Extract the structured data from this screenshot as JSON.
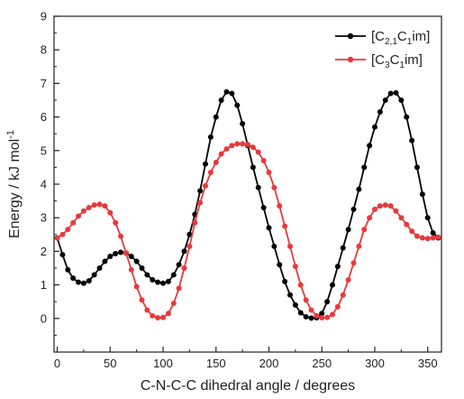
{
  "chart_data": {
    "type": "line",
    "xlabel": "C-N-C-C dihedral angle / degrees",
    "ylabel": "Energy / kJ mol",
    "ylabel_sup": "-1",
    "xlim": [
      -3,
      363
    ],
    "ylim": [
      -1,
      9
    ],
    "xticks": [
      0,
      50,
      100,
      150,
      200,
      250,
      300,
      350
    ],
    "yticks": [
      0,
      1,
      2,
      3,
      4,
      5,
      6,
      7,
      8,
      9
    ],
    "grid": false,
    "legend_position": "top-right",
    "series": [
      {
        "name_parts": [
          {
            "t": "[C",
            "sub": false
          },
          {
            "t": "2,1",
            "sub": true
          },
          {
            "t": "C",
            "sub": false
          },
          {
            "t": "1",
            "sub": true
          },
          {
            "t": "im]",
            "sub": false
          }
        ],
        "color": "#000000",
        "x": [
          0,
          5,
          10,
          15,
          20,
          25,
          30,
          35,
          40,
          45,
          50,
          55,
          60,
          65,
          70,
          75,
          80,
          85,
          90,
          95,
          100,
          105,
          110,
          115,
          120,
          125,
          130,
          135,
          140,
          145,
          150,
          155,
          160,
          165,
          170,
          175,
          180,
          185,
          190,
          195,
          200,
          205,
          210,
          215,
          220,
          225,
          230,
          235,
          240,
          245,
          250,
          255,
          260,
          265,
          270,
          275,
          280,
          285,
          290,
          295,
          300,
          305,
          310,
          315,
          320,
          325,
          330,
          335,
          340,
          345,
          350,
          355,
          360
        ],
        "y": [
          2.4,
          1.9,
          1.45,
          1.2,
          1.08,
          1.05,
          1.12,
          1.3,
          1.5,
          1.7,
          1.85,
          1.93,
          1.97,
          1.95,
          1.85,
          1.7,
          1.5,
          1.3,
          1.15,
          1.08,
          1.05,
          1.1,
          1.3,
          1.6,
          2.0,
          2.5,
          3.1,
          3.8,
          4.6,
          5.4,
          6.0,
          6.5,
          6.75,
          6.7,
          6.35,
          5.8,
          5.15,
          4.5,
          3.9,
          3.3,
          2.7,
          2.15,
          1.6,
          1.1,
          0.7,
          0.4,
          0.17,
          0.05,
          0.01,
          0.02,
          0.15,
          0.5,
          1.0,
          1.55,
          2.1,
          2.65,
          3.25,
          3.85,
          4.5,
          5.15,
          5.7,
          6.15,
          6.5,
          6.7,
          6.72,
          6.5,
          6.0,
          5.3,
          4.5,
          3.7,
          3.0,
          2.55,
          2.4
        ]
      },
      {
        "name_parts": [
          {
            "t": "[C",
            "sub": false
          },
          {
            "t": "3",
            "sub": true
          },
          {
            "t": "C",
            "sub": false
          },
          {
            "t": "1",
            "sub": true
          },
          {
            "t": "im]",
            "sub": false
          }
        ],
        "color": "#e8393b",
        "x": [
          0,
          5,
          10,
          15,
          20,
          25,
          30,
          35,
          40,
          45,
          50,
          55,
          60,
          65,
          70,
          75,
          80,
          85,
          90,
          95,
          100,
          105,
          110,
          115,
          120,
          125,
          130,
          135,
          140,
          145,
          150,
          155,
          160,
          165,
          170,
          175,
          180,
          185,
          190,
          195,
          200,
          205,
          210,
          215,
          220,
          225,
          230,
          235,
          240,
          245,
          250,
          255,
          260,
          265,
          270,
          275,
          280,
          285,
          290,
          295,
          300,
          305,
          310,
          315,
          320,
          325,
          330,
          335,
          340,
          345,
          350,
          355,
          360
        ],
        "y": [
          2.4,
          2.5,
          2.65,
          2.85,
          3.05,
          3.2,
          3.3,
          3.38,
          3.4,
          3.35,
          3.15,
          2.85,
          2.45,
          1.95,
          1.45,
          0.95,
          0.55,
          0.25,
          0.08,
          0.02,
          0.03,
          0.15,
          0.45,
          0.9,
          1.5,
          2.15,
          2.85,
          3.45,
          3.95,
          4.35,
          4.65,
          4.9,
          5.05,
          5.15,
          5.2,
          5.2,
          5.18,
          5.1,
          4.95,
          4.7,
          4.35,
          3.9,
          3.35,
          2.75,
          2.15,
          1.55,
          1.0,
          0.55,
          0.25,
          0.08,
          0.02,
          0.03,
          0.12,
          0.35,
          0.7,
          1.15,
          1.65,
          2.15,
          2.65,
          3.0,
          3.25,
          3.35,
          3.38,
          3.35,
          3.2,
          3.0,
          2.8,
          2.6,
          2.45,
          2.4,
          2.38,
          2.4,
          2.42
        ]
      }
    ]
  }
}
